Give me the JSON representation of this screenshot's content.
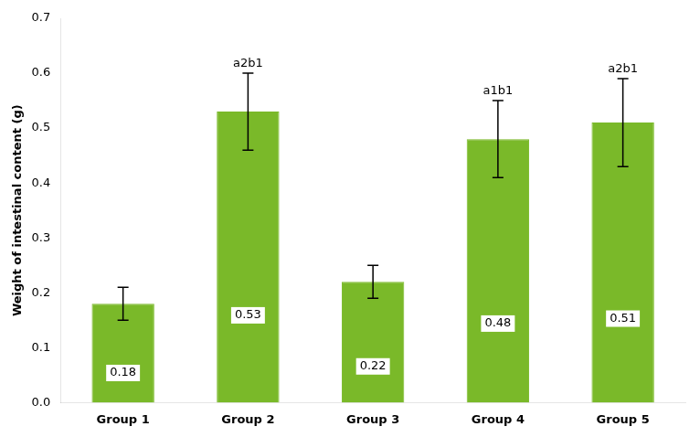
{
  "chart_data": {
    "type": "bar",
    "categories": [
      "Group 1",
      "Group 2",
      "Group 3",
      "Group 4",
      "Group 5"
    ],
    "values": [
      0.18,
      0.53,
      0.22,
      0.48,
      0.51
    ],
    "errors": [
      0.03,
      0.07,
      0.03,
      0.07,
      0.08
    ],
    "annotations": [
      null,
      "a2b1",
      null,
      "a1b1",
      "a2b1"
    ],
    "color": "#7ab929",
    "ylabel": "Weight of intestinal content (g)",
    "ylim": [
      0,
      0.7
    ],
    "yticks": [
      {
        "value": 0,
        "label": "0.0"
      },
      0.1,
      0.2,
      0.3,
      0.4,
      0.5,
      0.6,
      0.7
    ],
    "grid": false,
    "data_labels": true
  }
}
